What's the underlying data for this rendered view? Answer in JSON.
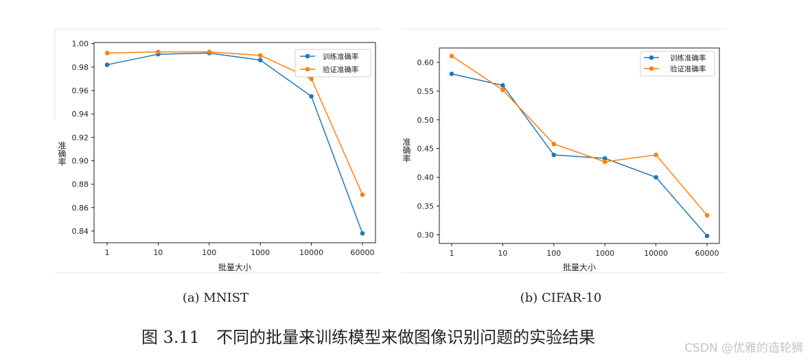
{
  "chart_data": [
    {
      "type": "line",
      "categories": [
        "1",
        "10",
        "100",
        "1000",
        "10000",
        "60000"
      ],
      "series": [
        {
          "name": "训练准确率",
          "color": "#1f77b4",
          "values": [
            0.982,
            0.991,
            0.992,
            0.986,
            0.955,
            0.838
          ]
        },
        {
          "name": "验证准确率",
          "color": "#ff7f0e",
          "values": [
            0.992,
            0.993,
            0.993,
            0.99,
            0.97,
            0.871
          ]
        }
      ],
      "xlabel": "批量大小",
      "ylabel": "准确率",
      "ylim": [
        0.83,
        1.001
      ],
      "yticks": [
        "0.84",
        "0.86",
        "0.88",
        "0.90",
        "0.92",
        "0.94",
        "0.96",
        "0.98",
        "1.00"
      ],
      "legend_position": "top-right",
      "grid": false
    },
    {
      "type": "line",
      "categories": [
        "1",
        "10",
        "100",
        "1000",
        "10000",
        "60000"
      ],
      "series": [
        {
          "name": "训练准确率",
          "color": "#1f77b4",
          "values": [
            0.58,
            0.56,
            0.439,
            0.433,
            0.4,
            0.298
          ]
        },
        {
          "name": "验证准确率",
          "color": "#ff7f0e",
          "values": [
            0.611,
            0.552,
            0.458,
            0.427,
            0.439,
            0.334
          ]
        }
      ],
      "xlabel": "批量大小",
      "ylabel": "准确率",
      "ylim": [
        0.285,
        0.625
      ],
      "yticks": [
        "0.30",
        "0.35",
        "0.40",
        "0.45",
        "0.50",
        "0.55",
        "0.60"
      ],
      "legend_position": "top-right",
      "grid": false
    }
  ],
  "subcaptions": [
    "(a) MNIST",
    "(b) CIFAR-10"
  ],
  "caption": "图 3.11　不同的批量来训练模型来做图像识别问题的实验结果",
  "watermark": "CSDN @优雅的造轮狮"
}
